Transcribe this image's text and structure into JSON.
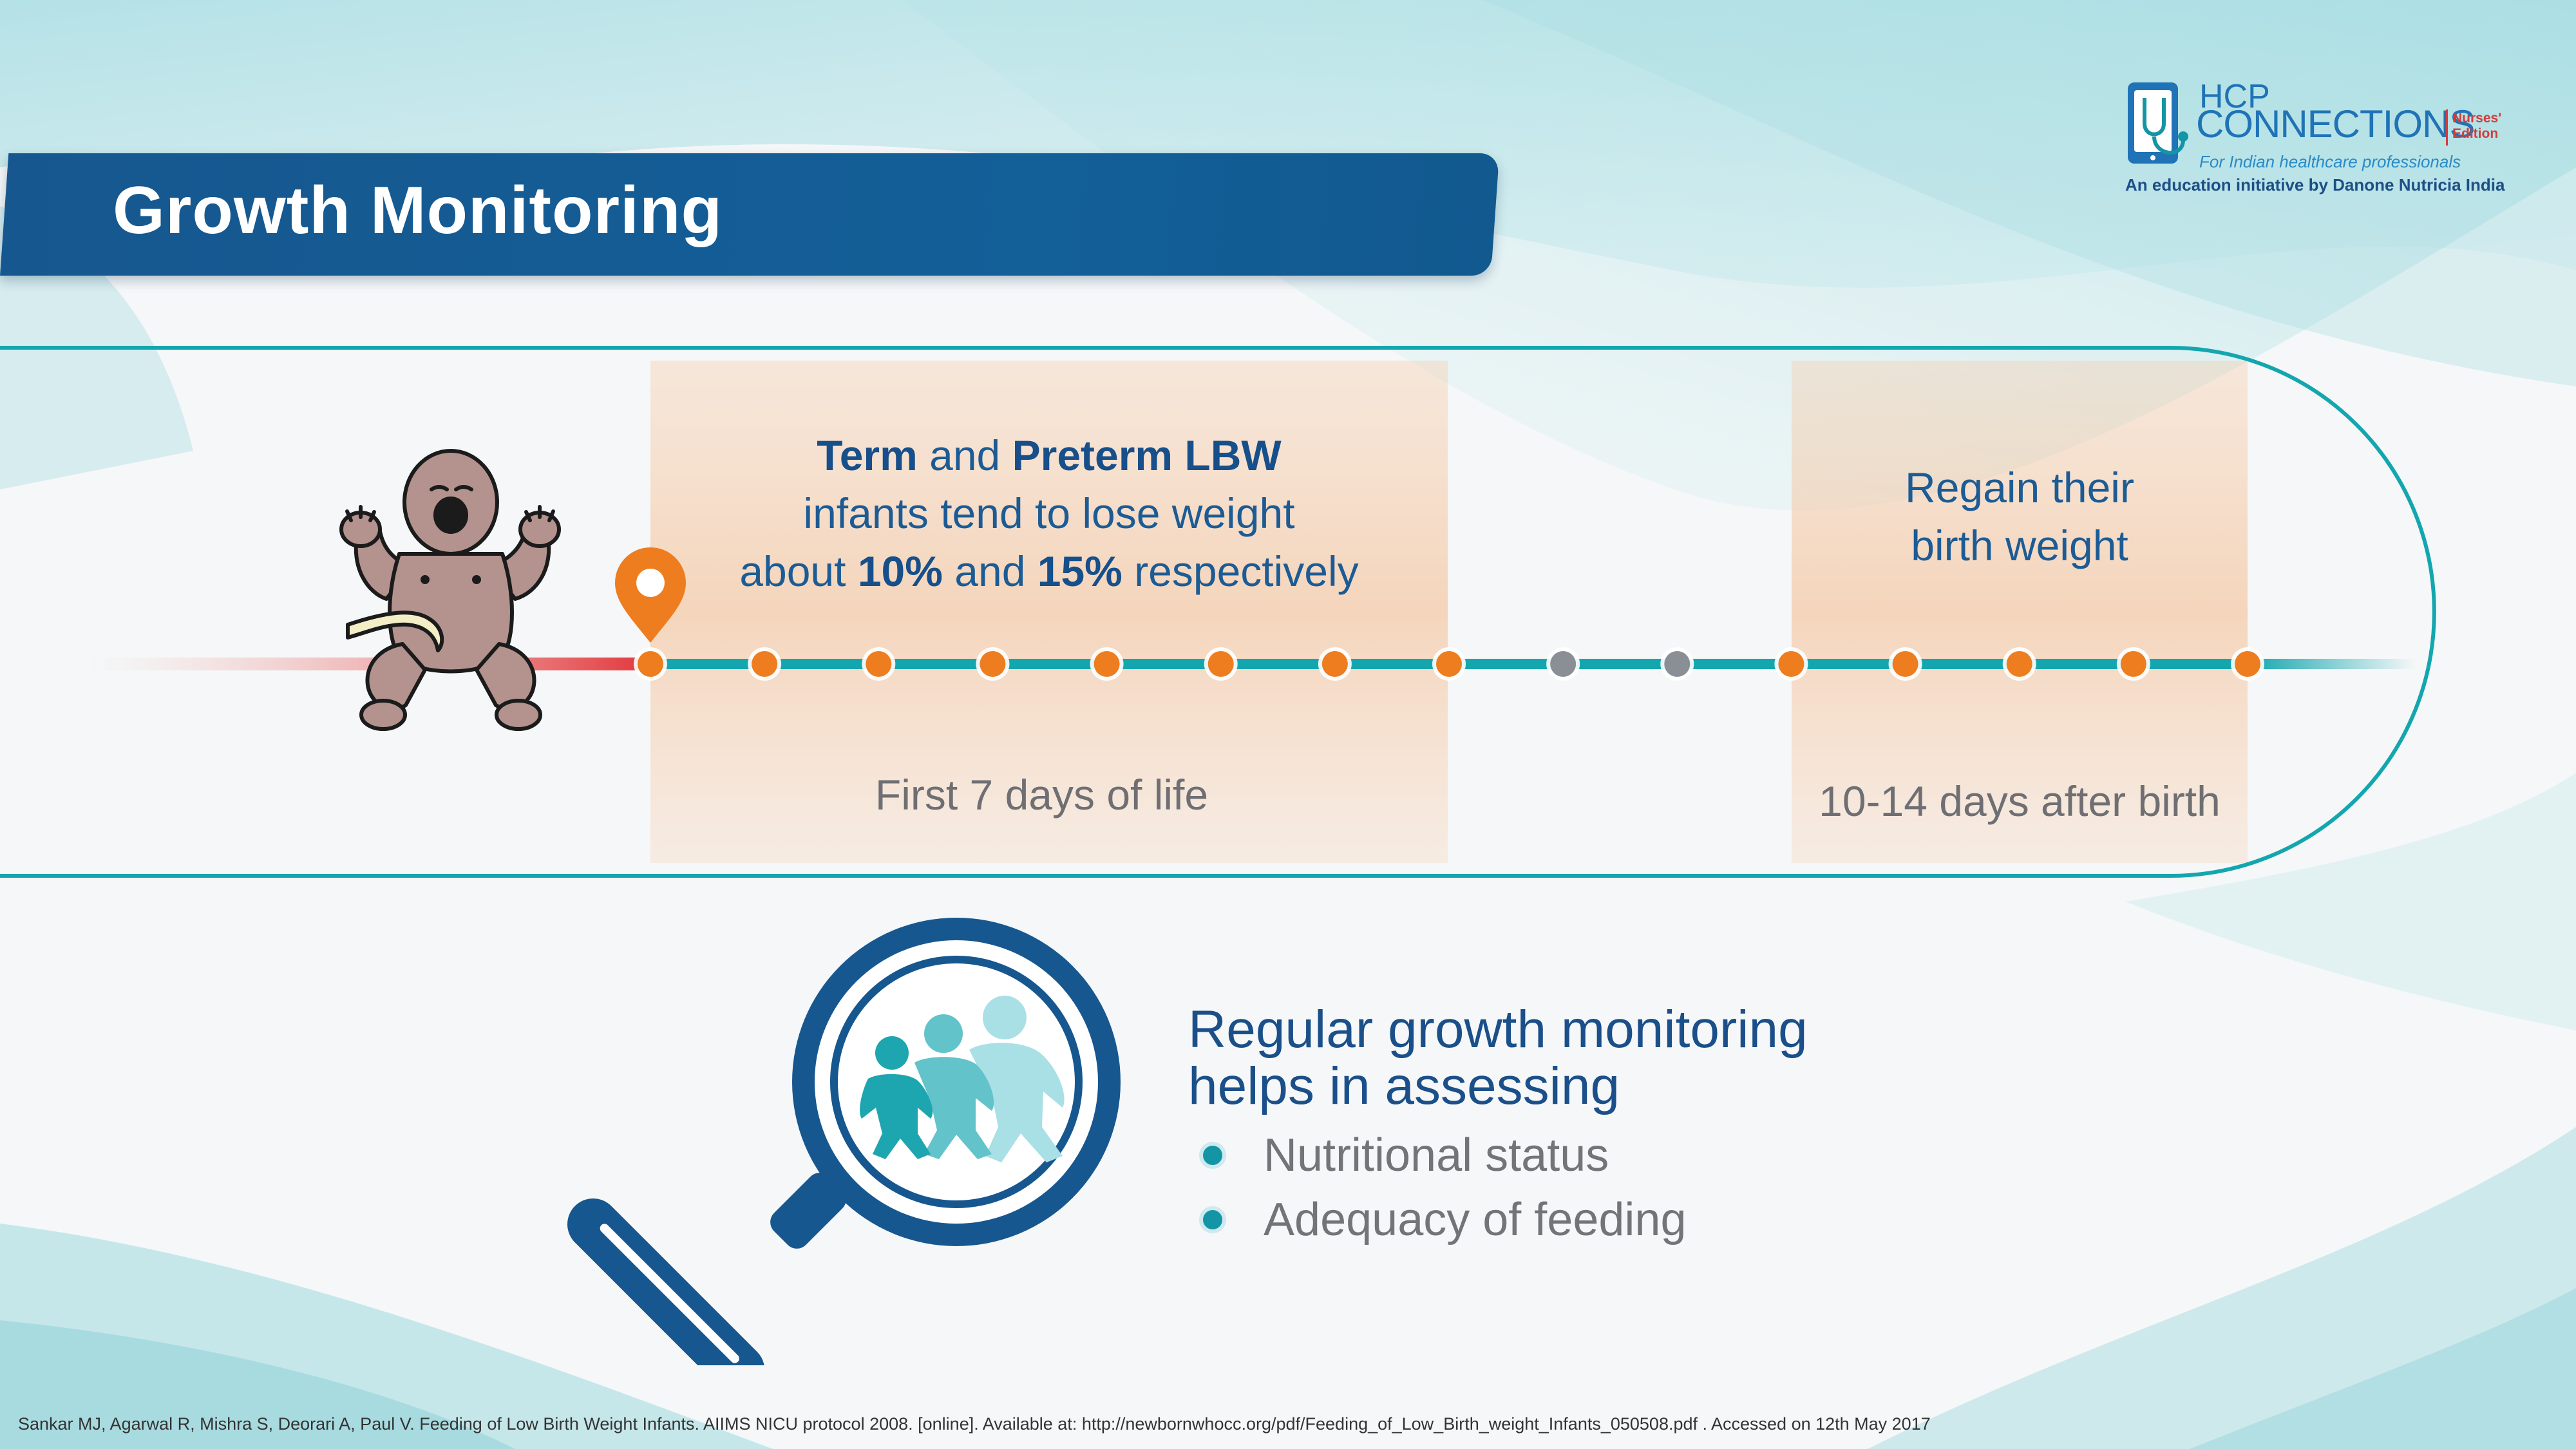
{
  "header": {
    "title": "Growth Monitoring"
  },
  "logo": {
    "line1": "HCP",
    "line2": "CONNECTIONS",
    "edition": "Nurses' Edition",
    "edition_line1": "Nurses'",
    "edition_line2": "Edition",
    "tagline": "For Indian healthcare professionals",
    "initiative": "An education initiative by Danone Nutricia India"
  },
  "timeline": {
    "box1": {
      "term": "Term",
      "and": "and",
      "preterm": "Preterm LBW",
      "line2": "infants tend to lose weight",
      "about": "about",
      "pct1": "10%",
      "and2": "and",
      "pct2": "15%",
      "respectively": "respectively",
      "caption": "First 7 days of life"
    },
    "box2": {
      "line1": "Regain their",
      "line2": "birth weight",
      "caption": "10-14 days after birth"
    },
    "dots": [
      "orange",
      "orange",
      "orange",
      "orange",
      "orange",
      "orange",
      "orange",
      "orange",
      "grey",
      "grey",
      "orange",
      "orange",
      "orange",
      "orange",
      "orange"
    ],
    "colors": {
      "orange": "#ee7d1f",
      "grey": "#8a8f96",
      "track": "#14a6ae",
      "red": "#e2363b"
    }
  },
  "monitoring": {
    "title_line1": "Regular growth monitoring",
    "title_line2": "helps in assessing",
    "bullets": [
      "Nutritional status",
      "Adequacy of feeding"
    ]
  },
  "footer": {
    "citation": "Sankar MJ, Agarwal R, Mishra S, Deorari A, Paul V. Feeding of Low Birth Weight Infants. AIIMS NICU protocol 2008. [online]. Available at:   http://newbornwhocc.org/pdf/Feeding_of_Low_Birth_weight_Infants_050508.pdf . Accessed on 12th May 2017"
  },
  "icons": [
    "baby-icon",
    "location-pin-icon",
    "magnifier-icon",
    "children-icon",
    "tablet-stethoscope-icon"
  ]
}
